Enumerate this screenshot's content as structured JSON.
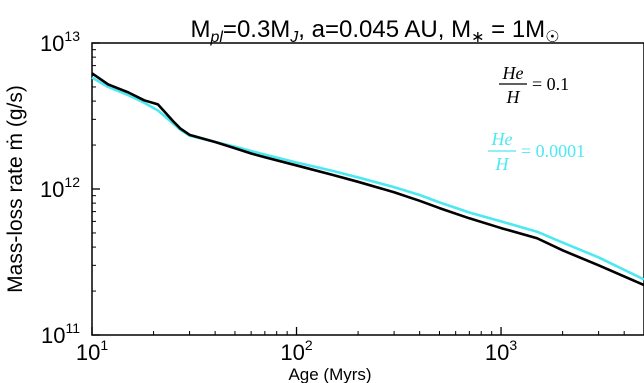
{
  "chart_data": {
    "type": "line",
    "title": {
      "planet_mass_symbol": "M",
      "planet_mass_subscript": "pl",
      "planet_mass_value": "=0.3M",
      "planet_mass_unit_subscript": "J",
      "separation": ", a=0.045 AU, M",
      "star_symbol": "∗",
      "star_mass": " = 1M",
      "sun_symbol": "☉"
    },
    "xlabel": "Age (Myrs)",
    "ylabel": "Mass-loss rate ṁ (g/s)",
    "x_scale": "log",
    "y_scale": "log",
    "xlim": [
      10,
      5000
    ],
    "ylim": [
      100000000000.0,
      10000000000000.0
    ],
    "x_ticks": [
      {
        "value": 10,
        "base": "10",
        "exp": "1"
      },
      {
        "value": 100,
        "base": "10",
        "exp": "2"
      },
      {
        "value": 1000,
        "base": "10",
        "exp": "3"
      }
    ],
    "y_ticks": [
      {
        "value": 100000000000.0,
        "base": "10",
        "exp": "11"
      },
      {
        "value": 1000000000000.0,
        "base": "10",
        "exp": "12"
      },
      {
        "value": 10000000000000.0,
        "base": "10",
        "exp": "13"
      }
    ],
    "grid": false,
    "legend_placement": "top-right",
    "series": [
      {
        "name_numerator": "He",
        "name_denominator": "H",
        "name_value": "= 0.1",
        "color": "#000000",
        "x": [
          10,
          12,
          15,
          18,
          21,
          23,
          25,
          27,
          30,
          40,
          50,
          60,
          70,
          100,
          150,
          200,
          300,
          400,
          500,
          700,
          1000,
          1500,
          2000,
          3000,
          5000
        ],
        "y": [
          6200000000000.0,
          5200000000000.0,
          4600000000000.0,
          4050000000000.0,
          3800000000000.0,
          3300000000000.0,
          2900000000000.0,
          2600000000000.0,
          2350000000000.0,
          2100000000000.0,
          1900000000000.0,
          1750000000000.0,
          1650000000000.0,
          1450000000000.0,
          1250000000000.0,
          1120000000000.0,
          950000000000.0,
          830000000000.0,
          740000000000.0,
          630000000000.0,
          540000000000.0,
          460000000000.0,
          380000000000.0,
          300000000000.0,
          220000000000.0
        ]
      },
      {
        "name_numerator": "He",
        "name_denominator": "H",
        "name_value": "= 0.0001",
        "color": "#4de8f0",
        "x": [
          10,
          12,
          15,
          18,
          21,
          23,
          25,
          27,
          30,
          40,
          50,
          60,
          70,
          100,
          150,
          200,
          300,
          400,
          500,
          700,
          1000,
          1500,
          2000,
          3000,
          5000
        ],
        "y": [
          5800000000000.0,
          5000000000000.0,
          4400000000000.0,
          3900000000000.0,
          3450000000000.0,
          3100000000000.0,
          2800000000000.0,
          2550000000000.0,
          2320000000000.0,
          2100000000000.0,
          1950000000000.0,
          1820000000000.0,
          1720000000000.0,
          1520000000000.0,
          1330000000000.0,
          1200000000000.0,
          1030000000000.0,
          910000000000.0,
          810000000000.0,
          690000000000.0,
          600000000000.0,
          510000000000.0,
          430000000000.0,
          340000000000.0,
          240000000000.0
        ]
      }
    ]
  }
}
